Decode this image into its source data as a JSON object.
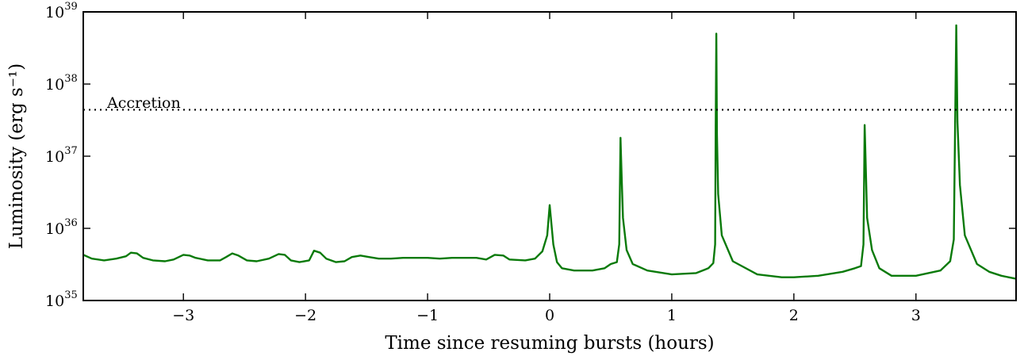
{
  "chart_data": {
    "type": "line",
    "xlabel": "Time since resuming bursts (hours)",
    "ylabel": "Luminosity (erg s⁻¹)",
    "xlim": [
      -3.82,
      3.82
    ],
    "ylim": [
      1e+35,
      1e+39
    ],
    "yscale": "log",
    "grid": false,
    "xticks": [
      -3,
      -2,
      -1,
      0,
      1,
      2,
      3
    ],
    "xtick_labels": [
      "−3",
      "−2",
      "−1",
      "0",
      "1",
      "2",
      "3"
    ],
    "yticks": [
      {
        "base": "10",
        "exp": "35",
        "value": 1e+35
      },
      {
        "base": "10",
        "exp": "36",
        "value": 1e+36
      },
      {
        "base": "10",
        "exp": "37",
        "value": 1e+37
      },
      {
        "base": "10",
        "exp": "38",
        "value": 1e+38
      },
      {
        "base": "10",
        "exp": "39",
        "value": 1e+39
      }
    ],
    "reference_line": {
      "label": "Accretion",
      "y": 4.4e+37,
      "style": "dotted",
      "color": "#000000"
    },
    "series": [
      {
        "color": "#0a7a0a",
        "points": [
          [
            -3.82,
            4.3e+35
          ],
          [
            -3.75,
            3.8e+35
          ],
          [
            -3.65,
            3.6e+35
          ],
          [
            -3.55,
            3.8e+35
          ],
          [
            -3.47,
            4.1e+35
          ],
          [
            -3.43,
            4.6e+35
          ],
          [
            -3.38,
            4.5e+35
          ],
          [
            -3.33,
            3.9e+35
          ],
          [
            -3.25,
            3.6e+35
          ],
          [
            -3.15,
            3.5e+35
          ],
          [
            -3.08,
            3.7e+35
          ],
          [
            -3.0,
            4.3e+35
          ],
          [
            -2.95,
            4.2e+35
          ],
          [
            -2.9,
            3.9e+35
          ],
          [
            -2.8,
            3.6e+35
          ],
          [
            -2.7,
            3.6e+35
          ],
          [
            -2.65,
            4e+35
          ],
          [
            -2.6,
            4.5e+35
          ],
          [
            -2.55,
            4.2e+35
          ],
          [
            -2.48,
            3.6e+35
          ],
          [
            -2.4,
            3.5e+35
          ],
          [
            -2.3,
            3.8e+35
          ],
          [
            -2.22,
            4.4e+35
          ],
          [
            -2.17,
            4.3e+35
          ],
          [
            -2.12,
            3.6e+35
          ],
          [
            -2.05,
            3.4e+35
          ],
          [
            -1.97,
            3.6e+35
          ],
          [
            -1.93,
            4.9e+35
          ],
          [
            -1.88,
            4.6e+35
          ],
          [
            -1.83,
            3.8e+35
          ],
          [
            -1.75,
            3.4e+35
          ],
          [
            -1.68,
            3.5e+35
          ],
          [
            -1.62,
            4e+35
          ],
          [
            -1.55,
            4.2e+35
          ],
          [
            -1.48,
            4e+35
          ],
          [
            -1.4,
            3.8e+35
          ],
          [
            -1.3,
            3.8e+35
          ],
          [
            -1.2,
            3.9e+35
          ],
          [
            -1.1,
            3.9e+35
          ],
          [
            -1.0,
            3.9e+35
          ],
          [
            -0.9,
            3.8e+35
          ],
          [
            -0.8,
            3.9e+35
          ],
          [
            -0.7,
            3.9e+35
          ],
          [
            -0.6,
            3.9e+35
          ],
          [
            -0.52,
            3.7e+35
          ],
          [
            -0.45,
            4.3e+35
          ],
          [
            -0.38,
            4.2e+35
          ],
          [
            -0.33,
            3.7e+35
          ],
          [
            -0.2,
            3.6e+35
          ],
          [
            -0.12,
            3.8e+35
          ],
          [
            -0.06,
            4.8e+35
          ],
          [
            -0.02,
            8e+35
          ],
          [
            0.0,
            2.1e+36
          ],
          [
            0.01,
            1.4e+36
          ],
          [
            0.03,
            6e+35
          ],
          [
            0.06,
            3.4e+35
          ],
          [
            0.1,
            2.8e+35
          ],
          [
            0.2,
            2.6e+35
          ],
          [
            0.35,
            2.6e+35
          ],
          [
            0.45,
            2.8e+35
          ],
          [
            0.5,
            3.2e+35
          ],
          [
            0.55,
            3.4e+35
          ],
          [
            0.57,
            6e+35
          ],
          [
            0.58,
            1.8e+37
          ],
          [
            0.59,
            5e+36
          ],
          [
            0.6,
            1.4e+36
          ],
          [
            0.63,
            5e+35
          ],
          [
            0.68,
            3.2e+35
          ],
          [
            0.8,
            2.6e+35
          ],
          [
            1.0,
            2.3e+35
          ],
          [
            1.2,
            2.4e+35
          ],
          [
            1.3,
            2.8e+35
          ],
          [
            1.34,
            3.3e+35
          ],
          [
            1.355,
            6e+35
          ],
          [
            1.36,
            2.5e+37
          ],
          [
            1.365,
            5e+38
          ],
          [
            1.37,
            2e+37
          ],
          [
            1.38,
            3e+36
          ],
          [
            1.41,
            8e+35
          ],
          [
            1.5,
            3.5e+35
          ],
          [
            1.7,
            2.3e+35
          ],
          [
            1.9,
            2.1e+35
          ],
          [
            2.0,
            2.1e+35
          ],
          [
            2.2,
            2.2e+35
          ],
          [
            2.4,
            2.5e+35
          ],
          [
            2.5,
            2.8e+35
          ],
          [
            2.55,
            3e+35
          ],
          [
            2.57,
            6e+35
          ],
          [
            2.58,
            2.7e+37
          ],
          [
            2.59,
            6e+36
          ],
          [
            2.6,
            1.4e+36
          ],
          [
            2.64,
            5e+35
          ],
          [
            2.7,
            2.8e+35
          ],
          [
            2.8,
            2.2e+35
          ],
          [
            3.0,
            2.2e+35
          ],
          [
            3.2,
            2.6e+35
          ],
          [
            3.28,
            3.5e+35
          ],
          [
            3.31,
            7e+35
          ],
          [
            3.33,
            6.5e+38
          ],
          [
            3.34,
            3e+37
          ],
          [
            3.36,
            4e+36
          ],
          [
            3.4,
            8e+35
          ],
          [
            3.5,
            3.2e+35
          ],
          [
            3.6,
            2.5e+35
          ],
          [
            3.7,
            2.2e+35
          ],
          [
            3.82,
            2e+35
          ]
        ]
      }
    ]
  }
}
